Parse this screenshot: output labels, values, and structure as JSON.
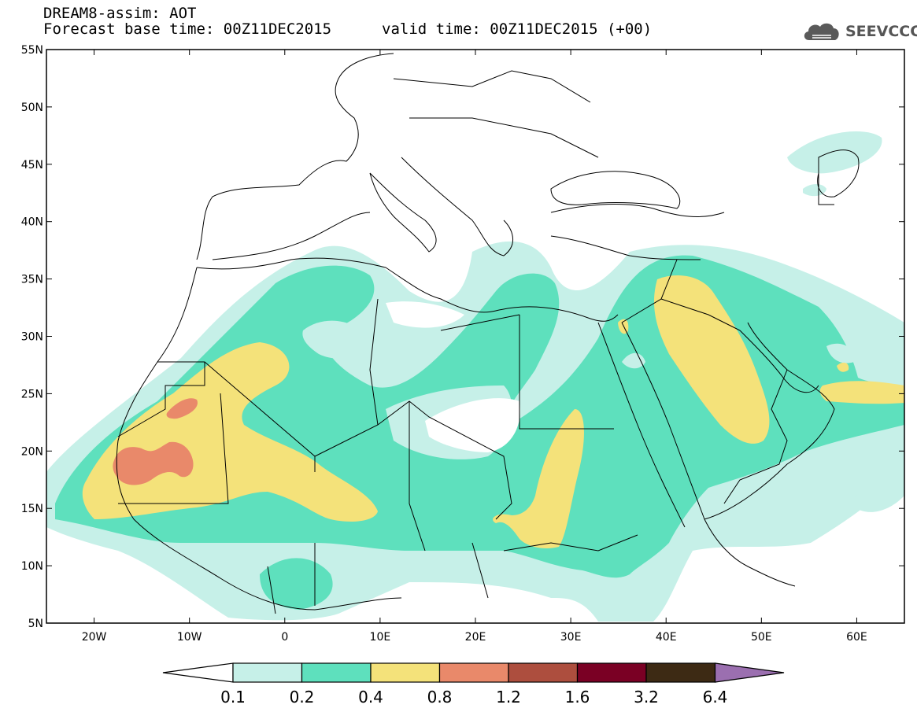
{
  "header": {
    "title_line1": "DREAM8-assim: AOT",
    "base_time_label": "Forecast base time: 00Z11DEC2015",
    "valid_time_label": "valid time: 00Z11DEC2015 (+00)",
    "logo_text": "SEEVCCC"
  },
  "map": {
    "lon_range": [
      -25,
      65
    ],
    "lat_range": [
      5,
      55
    ],
    "x_ticks": [
      {
        "lon": -20,
        "label": "20W"
      },
      {
        "lon": -10,
        "label": "10W"
      },
      {
        "lon": 0,
        "label": "0"
      },
      {
        "lon": 10,
        "label": "10E"
      },
      {
        "lon": 20,
        "label": "20E"
      },
      {
        "lon": 30,
        "label": "30E"
      },
      {
        "lon": 40,
        "label": "40E"
      },
      {
        "lon": 50,
        "label": "50E"
      },
      {
        "lon": 60,
        "label": "60E"
      }
    ],
    "y_ticks": [
      {
        "lat": 5,
        "label": "5N"
      },
      {
        "lat": 10,
        "label": "10N"
      },
      {
        "lat": 15,
        "label": "15N"
      },
      {
        "lat": 20,
        "label": "20N"
      },
      {
        "lat": 25,
        "label": "25N"
      },
      {
        "lat": 30,
        "label": "30N"
      },
      {
        "lat": 35,
        "label": "35N"
      },
      {
        "lat": 40,
        "label": "40N"
      },
      {
        "lat": 45,
        "label": "45N"
      },
      {
        "lat": 50,
        "label": "50N"
      },
      {
        "lat": 55,
        "label": "55N"
      }
    ]
  },
  "colorbar": {
    "below_color": "#ffffff",
    "above_color": "#9b6fb0",
    "boxes": [
      "#c6f0e8",
      "#5ee0bd",
      "#f4e27a",
      "#e9896a",
      "#ad4e3e",
      "#7a0024",
      "#3d2a14"
    ],
    "labels": [
      "0.1",
      "0.2",
      "0.4",
      "0.8",
      "1.2",
      "1.6",
      "3.2",
      "6.4"
    ]
  },
  "colors": {
    "level_0_1": "#c6f0e8",
    "level_0_2": "#5ee0bd",
    "level_0_4": "#f4e27a",
    "level_0_8": "#e9896a"
  }
}
